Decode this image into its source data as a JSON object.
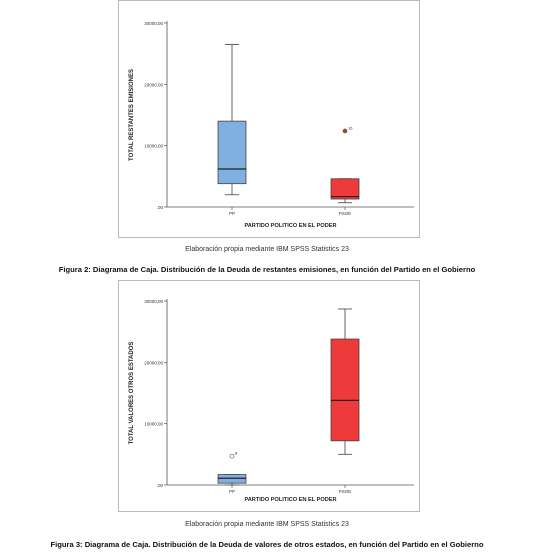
{
  "chart_data": [
    {
      "type": "box",
      "xlabel": "PARTIDO POLITICO EN EL PODER",
      "ylabel": "TOTAL RESTANTES EMISIONES",
      "ylim": [
        0,
        30000
      ],
      "yticks": [
        {
          "value": 0,
          "label": ",00"
        },
        {
          "value": 10000,
          "label": "10000,00"
        },
        {
          "value": 20000,
          "label": "20000,00"
        },
        {
          "value": 30000,
          "label": "30000,00"
        }
      ],
      "categories": [
        "PP",
        "PSOE"
      ],
      "boxes": [
        {
          "category": "PP",
          "color": "#7fb0df",
          "min": 2000,
          "q1": 3800,
          "median": 6200,
          "q3": 14000,
          "max": 26500,
          "outliers": []
        },
        {
          "category": "PSOE",
          "color": "#ee3a3a",
          "min": 700,
          "q1": 1300,
          "median": 1700,
          "q3": 4600,
          "max": 4600,
          "outliers": [
            {
              "value": 12400,
              "label": "16"
            }
          ]
        }
      ],
      "grid": false,
      "caption": "Elaboración propia mediante IBM SPSS Statistics 23",
      "figure_title": "Figura 2: Diagrama de Caja. Distribución de la Deuda de restantes emisiones, en función del Partido en el Gobierno"
    },
    {
      "type": "box",
      "xlabel": "PARTIDO POLITICO EN EL PODER",
      "ylabel": "TOTAL VALORES OTROS ESTADOS",
      "ylim": [
        0,
        30000
      ],
      "yticks": [
        {
          "value": 0,
          "label": ",00"
        },
        {
          "value": 10000,
          "label": "10000,00"
        },
        {
          "value": 20000,
          "label": "20000,00"
        },
        {
          "value": 30000,
          "label": "30000,00"
        }
      ],
      "categories": [
        "PP",
        "PSOE"
      ],
      "boxes": [
        {
          "category": "PP",
          "color": "#7fb0df",
          "min": 0,
          "q1": 300,
          "median": 1100,
          "q3": 1700,
          "max": 1700,
          "outliers": [
            {
              "value": 4700,
              "label": "8"
            }
          ]
        },
        {
          "category": "PSOE",
          "color": "#ee3a3a",
          "min": 5000,
          "q1": 7200,
          "median": 13800,
          "q3": 23800,
          "max": 28700,
          "outliers": []
        }
      ],
      "grid": false,
      "caption": "Elaboración propia mediante IBM SPSS Statistics 23",
      "figure_title": "Figura 3: Diagrama de Caja. Distribución de la Deuda de valores de otros estados, en función del Partido en el Gobierno"
    }
  ]
}
